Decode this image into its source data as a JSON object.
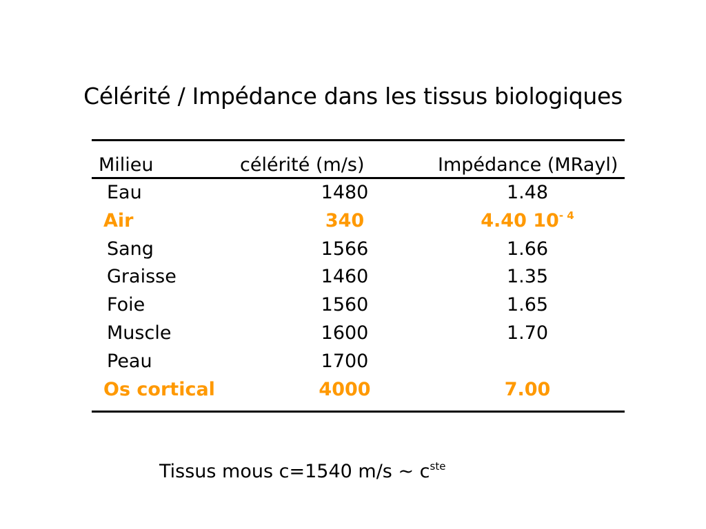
{
  "title": "Célérité / Impédance dans les tissus biologiques",
  "table": {
    "headers": [
      "Milieu",
      "célérité (m/s)",
      "Impédance (MRayl)"
    ],
    "rows": [
      {
        "milieu": "Eau",
        "celerite": "1480",
        "impedance": "1.48",
        "impedance_exp": "",
        "highlight": false
      },
      {
        "milieu": "Air",
        "celerite": "340",
        "impedance": "4.40 10",
        "impedance_exp": "- 4",
        "highlight": true
      },
      {
        "milieu": "Sang",
        "celerite": "1566",
        "impedance": "1.66",
        "impedance_exp": "",
        "highlight": false
      },
      {
        "milieu": "Graisse",
        "celerite": "1460",
        "impedance": "1.35",
        "impedance_exp": "",
        "highlight": false
      },
      {
        "milieu": "Foie",
        "celerite": "1560",
        "impedance": "1.65",
        "impedance_exp": "",
        "highlight": false
      },
      {
        "milieu": "Muscle",
        "celerite": "1600",
        "impedance": "1.70",
        "impedance_exp": "",
        "highlight": false
      },
      {
        "milieu": "Peau",
        "celerite": "1700",
        "impedance": "",
        "impedance_exp": "",
        "highlight": false
      },
      {
        "milieu": "Os cortical",
        "celerite": "4000",
        "impedance": "7.00",
        "impedance_exp": "",
        "highlight": true
      }
    ]
  },
  "footnote": {
    "text": "Tissus mous c=1540 m/s ~ c",
    "sup": "ste"
  },
  "colors": {
    "highlight": "#ff9900",
    "text": "#000000",
    "background": "#ffffff"
  }
}
